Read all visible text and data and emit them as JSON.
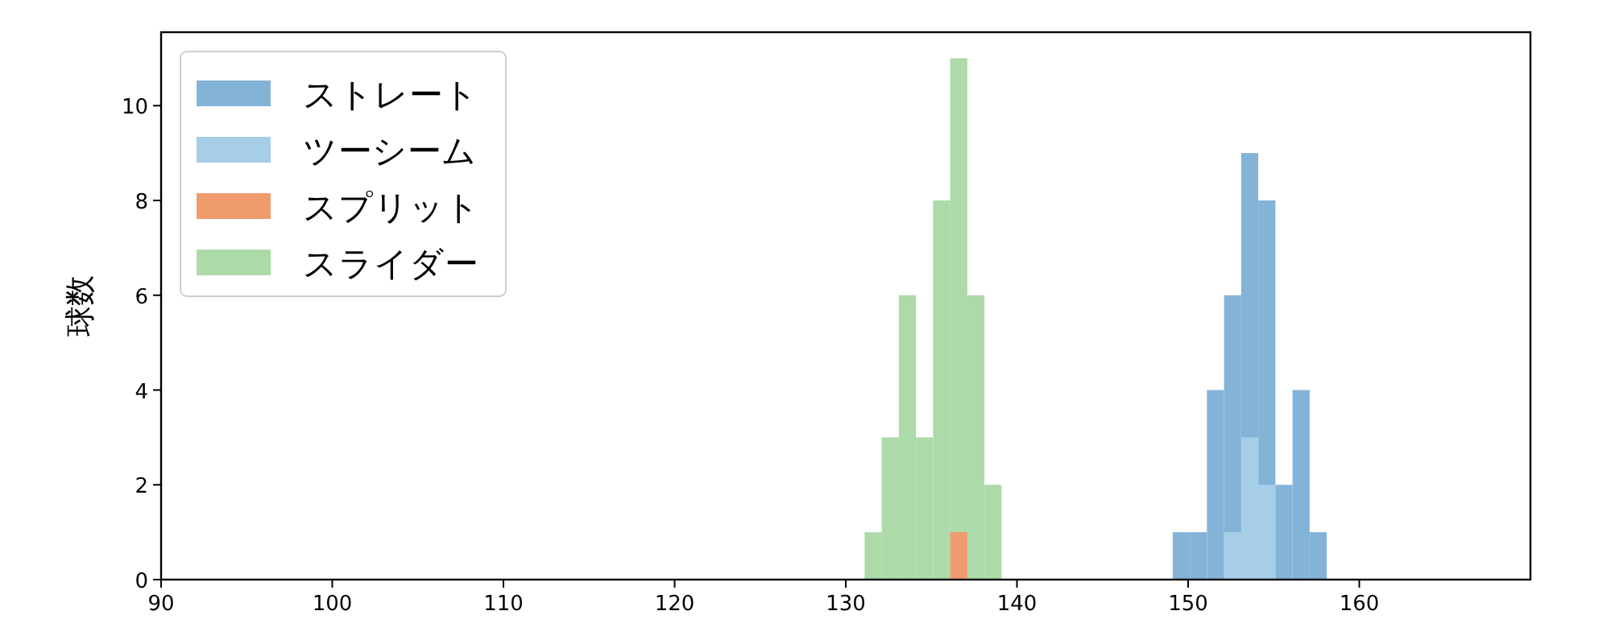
{
  "chart_data": {
    "type": "histogram",
    "ylabel": "球数",
    "xlim": [
      90,
      170
    ],
    "ylim": [
      0,
      11.55
    ],
    "xticks": [
      90,
      100,
      110,
      120,
      130,
      140,
      150,
      160
    ],
    "yticks": [
      0,
      2,
      4,
      6,
      8,
      10
    ],
    "grid": false,
    "legend": "top left",
    "bins": [
      131.1,
      132.1,
      133.1,
      134.1,
      135.1,
      136.1,
      137.1,
      138.1,
      139.1,
      140.1,
      141.1,
      142.1,
      143.1,
      144.1,
      145.1,
      146.1,
      147.1,
      148.1,
      149.1,
      150.1,
      151.1,
      152.1,
      153.1,
      154.1,
      155.1,
      156.1,
      157.1,
      158.1
    ],
    "series": [
      {
        "name": "ストレート",
        "color": "#84b3d8",
        "values": [
          null,
          null,
          null,
          null,
          null,
          null,
          null,
          null,
          0,
          0,
          0,
          0,
          0,
          0,
          0,
          0,
          0,
          0,
          1,
          1,
          4,
          6,
          9,
          8,
          2,
          4,
          1
        ]
      },
      {
        "name": "ツーシーム",
        "color": "#a6cee6",
        "values": [
          null,
          null,
          null,
          null,
          null,
          null,
          null,
          null,
          null,
          null,
          null,
          null,
          null,
          null,
          null,
          null,
          null,
          null,
          null,
          null,
          null,
          1,
          3,
          2,
          null,
          null,
          null
        ]
      },
      {
        "name": "スプリット",
        "color": "#f09b6e",
        "values": [
          null,
          null,
          null,
          null,
          null,
          1,
          null,
          null,
          null,
          null,
          null,
          null,
          null,
          null,
          null,
          null,
          null,
          null,
          null,
          null,
          null,
          null,
          null,
          null,
          null,
          null,
          null
        ]
      },
      {
        "name": "スライダー",
        "color": "#acdaa8",
        "values": [
          1,
          3,
          6,
          3,
          8,
          11,
          6,
          2,
          null,
          null,
          null,
          null,
          null,
          null,
          null,
          null,
          null,
          null,
          null,
          null,
          null,
          null,
          null,
          null,
          null,
          null,
          null
        ]
      }
    ]
  }
}
